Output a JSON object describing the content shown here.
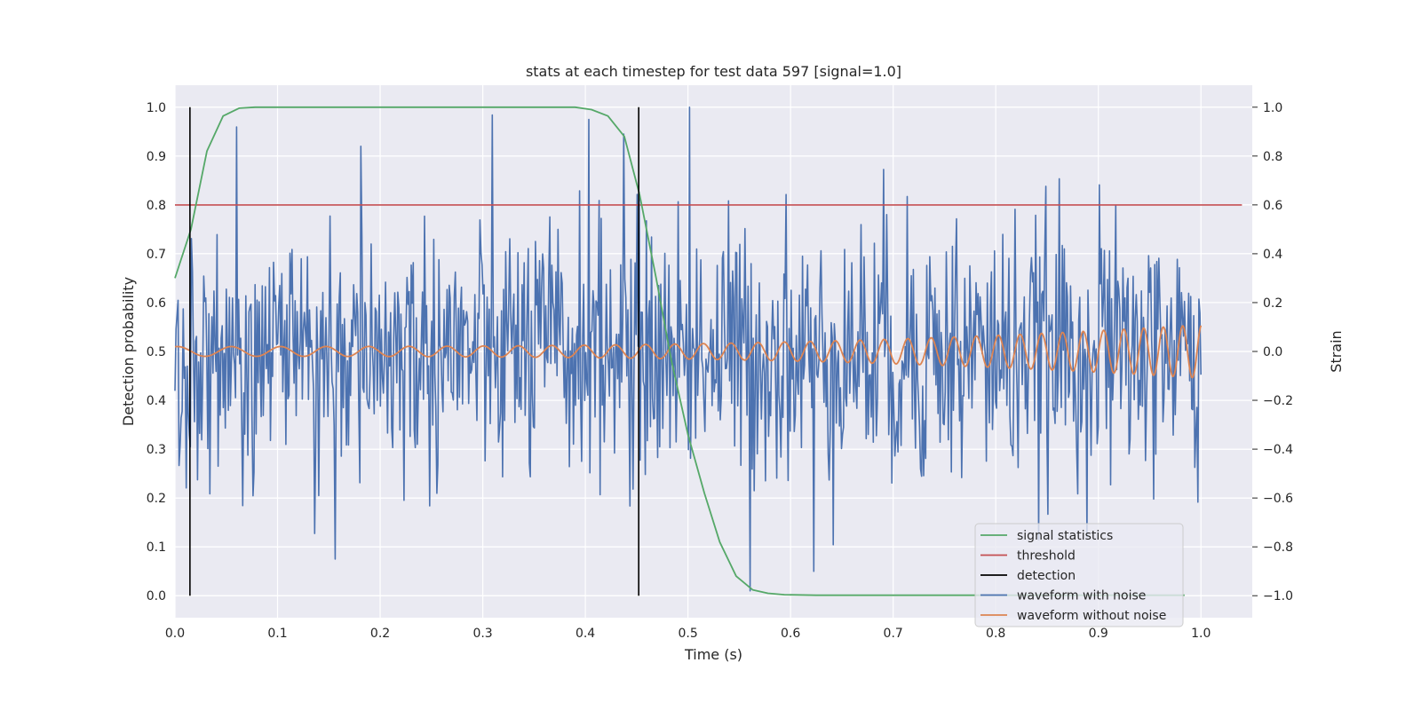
{
  "chart_data": {
    "type": "line",
    "title": "stats at each timestep for test data 597 [signal=1.0]",
    "xlabel": "Time (s)",
    "ylabel_left": "Detection probability",
    "ylabel_right": "Strain",
    "xlim": [
      0.0,
      1.05
    ],
    "ylim_left": [
      -0.045,
      1.045
    ],
    "ylim_right": [
      -1.09,
      1.09
    ],
    "x_ticks": [
      0.0,
      0.1,
      0.2,
      0.3,
      0.4,
      0.5,
      0.6,
      0.7,
      0.8,
      0.9,
      1.0
    ],
    "x_tick_labels": [
      "0.0",
      "0.1",
      "0.2",
      "0.3",
      "0.4",
      "0.5",
      "0.6",
      "0.7",
      "0.8",
      "0.9",
      "1.0"
    ],
    "y_left_ticks": [
      0.0,
      0.1,
      0.2,
      0.3,
      0.4,
      0.5,
      0.6,
      0.7,
      0.8,
      0.9,
      1.0
    ],
    "y_left_tick_labels": [
      "0.0",
      "0.1",
      "0.2",
      "0.3",
      "0.4",
      "0.5",
      "0.6",
      "0.7",
      "0.8",
      "0.9",
      "1.0"
    ],
    "y_right_ticks": [
      -1.0,
      -0.8,
      -0.6,
      -0.4,
      -0.2,
      0.0,
      0.2,
      0.4,
      0.6,
      0.8,
      1.0
    ],
    "y_right_tick_labels": [
      "−1.0",
      "−0.8",
      "−0.6",
      "−0.4",
      "−0.2",
      "0.0",
      "0.2",
      "0.4",
      "0.6",
      "0.8",
      "1.0"
    ],
    "grid": true,
    "legend_position": "lower-right",
    "series": [
      {
        "name": "signal statistics",
        "axis": "left",
        "color": "#55a868",
        "x": [
          0.0,
          0.0156,
          0.0312,
          0.0469,
          0.0625,
          0.0781,
          0.0938,
          0.2,
          0.3,
          0.39,
          0.406,
          0.422,
          0.438,
          0.453,
          0.469,
          0.484,
          0.5,
          0.516,
          0.531,
          0.547,
          0.563,
          0.578,
          0.594,
          0.625,
          0.7,
          0.8,
          0.9,
          0.984
        ],
        "values": [
          0.65,
          0.75,
          0.91,
          0.982,
          0.998,
          1.0,
          1.0,
          1.0,
          1.0,
          1.0,
          0.995,
          0.982,
          0.94,
          0.82,
          0.65,
          0.48,
          0.33,
          0.21,
          0.11,
          0.04,
          0.012,
          0.005,
          0.002,
          0.001,
          0.001,
          0.001,
          0.001,
          0.001
        ]
      },
      {
        "name": "threshold",
        "axis": "left",
        "color": "#c44e52",
        "x": [
          0.0,
          1.04
        ],
        "values": [
          0.8,
          0.8
        ]
      },
      {
        "name": "waveform with noise",
        "axis": "right",
        "color": "#4c72b0",
        "generated": "noise",
        "x_start": 0.0,
        "x_end": 1.0,
        "n_points": 1000,
        "spikes": [
          {
            "x": 0.502,
            "y": 1.0
          },
          {
            "x": 0.561,
            "y": -0.98
          },
          {
            "x": 0.156,
            "y": -0.85
          },
          {
            "x": 0.181,
            "y": 0.84
          },
          {
            "x": 0.403,
            "y": 0.95
          },
          {
            "x": 0.437,
            "y": 0.89
          },
          {
            "x": 0.623,
            "y": -0.9
          }
        ]
      },
      {
        "name": "waveform without noise",
        "axis": "right",
        "color": "#dd8452",
        "generated": "chirp",
        "x_start": 0.0,
        "x_end": 1.0,
        "amplitude_start": 0.02,
        "amplitude_end": 0.11,
        "freq_start": 18,
        "freq_end": 54
      },
      {
        "name": "detection",
        "axis": "left",
        "color": "#000000",
        "type": "vlines",
        "x": [
          0.0146,
          0.452
        ],
        "ymin": 0.0,
        "ymax": 1.0
      }
    ],
    "legend": [
      "signal statistics",
      "threshold",
      "detection",
      "waveform with noise",
      "waveform without noise"
    ]
  }
}
